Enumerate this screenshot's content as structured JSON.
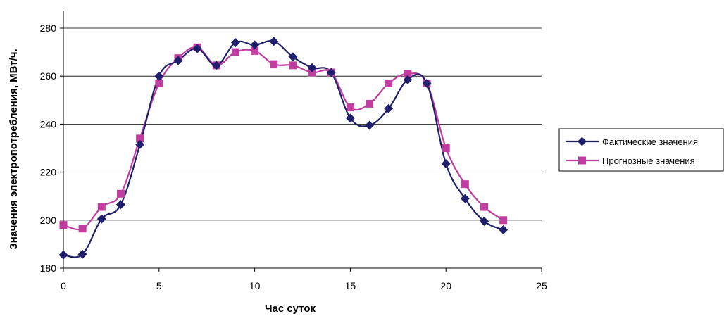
{
  "chart_data": {
    "type": "line",
    "xlabel": "Час суток",
    "ylabel": "Значения электропотребления, МВт/ч.",
    "xlim": [
      0,
      25
    ],
    "ylim": [
      180,
      280
    ],
    "xticks": [
      0,
      5,
      10,
      15,
      20,
      25
    ],
    "yticks": [
      180,
      200,
      220,
      240,
      260,
      280
    ],
    "grid": "horizontal",
    "legend_position": "right",
    "series": [
      {
        "name": "Фактические значения",
        "color": "#1f1f6b",
        "marker": "diamond",
        "x": [
          0,
          1,
          2,
          3,
          4,
          5,
          6,
          7,
          8,
          9,
          10,
          11,
          12,
          13,
          14,
          15,
          16,
          17,
          18,
          19,
          20,
          21,
          22,
          23
        ],
        "values": [
          185.5,
          185.8,
          200.5,
          206.5,
          231.5,
          260,
          266.5,
          271.5,
          264.5,
          274,
          273,
          274.5,
          268,
          263.5,
          261.5,
          242.5,
          239.5,
          246.5,
          258.5,
          257,
          223.5,
          209,
          199.5,
          196
        ]
      },
      {
        "name": "Прогнозные значения",
        "color": "#c13ea0",
        "marker": "square",
        "x": [
          0,
          1,
          2,
          3,
          4,
          5,
          6,
          7,
          8,
          9,
          10,
          11,
          12,
          13,
          14,
          15,
          16,
          17,
          18,
          19,
          20,
          21,
          22,
          23
        ],
        "values": [
          198,
          196.5,
          205.5,
          211,
          234,
          257,
          267.5,
          272,
          264.5,
          270,
          270.5,
          265,
          264.5,
          261.5,
          261.5,
          247,
          248.5,
          257,
          261,
          257,
          230,
          215,
          205.5,
          200
        ]
      }
    ]
  }
}
